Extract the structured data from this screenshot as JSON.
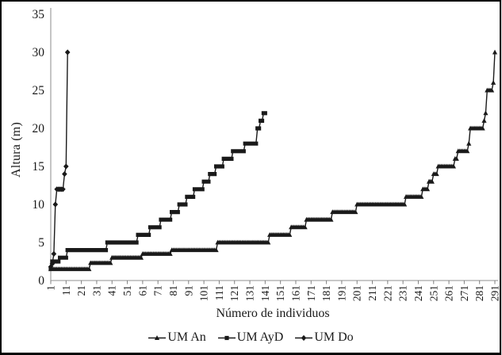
{
  "chart_data": {
    "type": "line",
    "title": "",
    "xlabel": "Número de individuos",
    "ylabel": "Altura (m)",
    "xlim": [
      1,
      291
    ],
    "ylim": [
      0,
      35
    ],
    "y_ticks": [
      0,
      5,
      10,
      15,
      20,
      25,
      30,
      35
    ],
    "x_ticks": [
      1,
      11,
      21,
      31,
      41,
      51,
      61,
      71,
      81,
      91,
      101,
      111,
      121,
      131,
      141,
      151,
      161,
      171,
      181,
      191,
      201,
      211,
      221,
      231,
      241,
      251,
      261,
      271,
      281,
      291
    ],
    "grid": false,
    "legend_position": "bottom-center",
    "colors": {
      "series": "#1a1a1a",
      "axis_line": "#a6a6a6",
      "tick": "#7f7f7f",
      "text": "#1a1a1a",
      "background": "#ffffff",
      "border": "#000000"
    },
    "series": [
      {
        "name": "UM An",
        "marker": "triangle",
        "segments": [
          [
            1,
            26,
            1.5
          ],
          [
            27,
            40,
            2.3
          ],
          [
            41,
            60,
            3
          ],
          [
            61,
            79,
            3.5
          ],
          [
            80,
            109,
            4
          ],
          [
            110,
            143,
            5
          ],
          [
            144,
            157,
            6
          ],
          [
            158,
            167,
            7
          ],
          [
            168,
            184,
            8
          ],
          [
            185,
            200,
            9
          ],
          [
            201,
            232,
            10
          ],
          [
            233,
            243,
            11
          ],
          [
            244,
            247,
            12
          ],
          [
            248,
            250,
            13
          ],
          [
            251,
            253,
            14
          ],
          [
            254,
            264,
            15
          ],
          [
            265,
            266,
            16
          ],
          [
            267,
            273,
            17
          ],
          [
            274,
            274,
            18
          ],
          [
            275,
            283,
            20
          ],
          [
            284,
            284,
            21
          ],
          [
            285,
            285,
            22
          ],
          [
            286,
            289,
            25
          ],
          [
            290,
            290,
            26
          ],
          [
            291,
            291,
            30
          ]
        ]
      },
      {
        "name": "UM AyD",
        "marker": "square",
        "segments": [
          [
            1,
            1,
            1.6
          ],
          [
            2,
            6,
            2.5
          ],
          [
            7,
            11,
            3
          ],
          [
            12,
            37,
            4
          ],
          [
            38,
            57,
            5
          ],
          [
            58,
            65,
            6
          ],
          [
            66,
            72,
            7
          ],
          [
            73,
            79,
            8
          ],
          [
            80,
            84,
            9
          ],
          [
            85,
            89,
            10
          ],
          [
            90,
            94,
            11
          ],
          [
            95,
            100,
            12
          ],
          [
            101,
            104,
            13
          ],
          [
            105,
            108,
            14
          ],
          [
            109,
            113,
            15
          ],
          [
            114,
            119,
            16
          ],
          [
            120,
            127,
            17
          ],
          [
            128,
            135,
            18
          ],
          [
            136,
            137,
            20
          ],
          [
            138,
            139,
            21
          ],
          [
            140,
            141,
            22
          ]
        ]
      },
      {
        "name": "UM Do",
        "marker": "diamond",
        "segments": [
          [
            1,
            1,
            1.8
          ],
          [
            2,
            2,
            2.2
          ],
          [
            3,
            3,
            3.5
          ],
          [
            4,
            4,
            10
          ],
          [
            5,
            9,
            12
          ],
          [
            10,
            10,
            14
          ],
          [
            11,
            11,
            15
          ],
          [
            12,
            12,
            30
          ]
        ]
      }
    ]
  }
}
